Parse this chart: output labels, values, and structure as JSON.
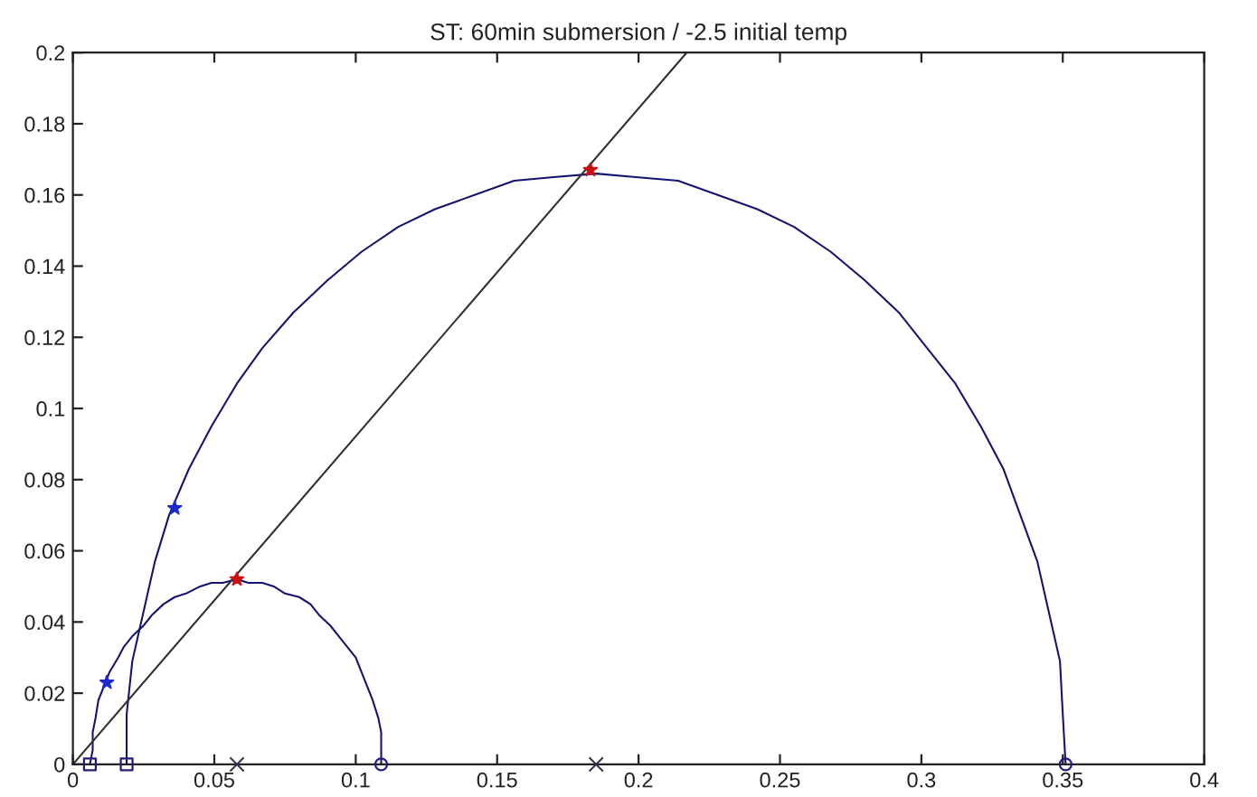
{
  "chart_data": {
    "type": "line",
    "title": "ST: 60min submersion / -2.5 initial temp",
    "xlim": [
      0,
      0.4
    ],
    "ylim": [
      0,
      0.2
    ],
    "xticks": [
      0,
      0.05,
      0.1,
      0.15,
      0.2,
      0.25,
      0.3,
      0.35,
      0.4
    ],
    "yticks": [
      0,
      0.02,
      0.04,
      0.06,
      0.08,
      0.1,
      0.12,
      0.14,
      0.16,
      0.18,
      0.2
    ],
    "series": [
      {
        "color": "#141470",
        "marker": "none",
        "line_style": "solid",
        "x": [
          0.006,
          0.007,
          0.007,
          0.008,
          0.009,
          0.011,
          0.013,
          0.016,
          0.018,
          0.021,
          0.025,
          0.028,
          0.032,
          0.036,
          0.04,
          0.045,
          0.049,
          0.053,
          0.058,
          0.062,
          0.067,
          0.071,
          0.075,
          0.08,
          0.084,
          0.087,
          0.091,
          0.094,
          0.097,
          0.1,
          0.102,
          0.104,
          0.106,
          0.108,
          0.109,
          0.109,
          0.109
        ],
        "values": [
          0,
          0.004,
          0.009,
          0.013,
          0.018,
          0.022,
          0.026,
          0.03,
          0.033,
          0.036,
          0.039,
          0.042,
          0.045,
          0.047,
          0.048,
          0.05,
          0.051,
          0.051,
          0.052,
          0.051,
          0.051,
          0.05,
          0.048,
          0.047,
          0.045,
          0.042,
          0.039,
          0.036,
          0.033,
          0.03,
          0.026,
          0.022,
          0.018,
          0.013,
          0.009,
          0.004,
          0
        ]
      },
      {
        "color": "#141470",
        "marker": "none",
        "line_style": "solid",
        "x": [
          0.019,
          0.019,
          0.021,
          0.025,
          0.029,
          0.034,
          0.041,
          0.049,
          0.058,
          0.067,
          0.078,
          0.09,
          0.102,
          0.115,
          0.128,
          0.142,
          0.156,
          0.17,
          0.185,
          0.199,
          0.214,
          0.228,
          0.242,
          0.255,
          0.268,
          0.28,
          0.292,
          0.302,
          0.312,
          0.321,
          0.329,
          0.335,
          0.341,
          0.345,
          0.349,
          0.35,
          0.351
        ],
        "values": [
          0,
          0.014,
          0.029,
          0.043,
          0.057,
          0.07,
          0.083,
          0.095,
          0.107,
          0.117,
          0.127,
          0.136,
          0.144,
          0.151,
          0.156,
          0.16,
          0.164,
          0.165,
          0.166,
          0.165,
          0.164,
          0.16,
          0.156,
          0.151,
          0.144,
          0.136,
          0.127,
          0.117,
          0.107,
          0.095,
          0.083,
          0.07,
          0.057,
          0.043,
          0.029,
          0.014,
          0
        ]
      },
      {
        "color": "#303030",
        "marker": "none",
        "line_style": "solid",
        "x": [
          0,
          0.217
        ],
        "values": [
          0,
          0.2
        ]
      },
      {
        "type": "scatter",
        "color": "#1f1f7a",
        "marker": "square",
        "x": [
          0.006,
          0.019
        ],
        "values": [
          0,
          0
        ]
      },
      {
        "type": "scatter",
        "color": "#1f1f7a",
        "marker": "circle",
        "x": [
          0.109,
          0.351
        ],
        "values": [
          0,
          0
        ]
      },
      {
        "type": "scatter",
        "color": "#303050",
        "marker": "cross",
        "x": [
          0.058,
          0.185
        ],
        "values": [
          0,
          0
        ]
      },
      {
        "type": "scatter",
        "color": "#1a2ad0",
        "marker": "star",
        "x": [
          0.012,
          0.036
        ],
        "values": [
          0.023,
          0.072
        ]
      },
      {
        "type": "scatter",
        "color": "#cc1010",
        "marker": "star",
        "x": [
          0.058,
          0.183
        ],
        "values": [
          0.052,
          0.167
        ]
      }
    ]
  }
}
